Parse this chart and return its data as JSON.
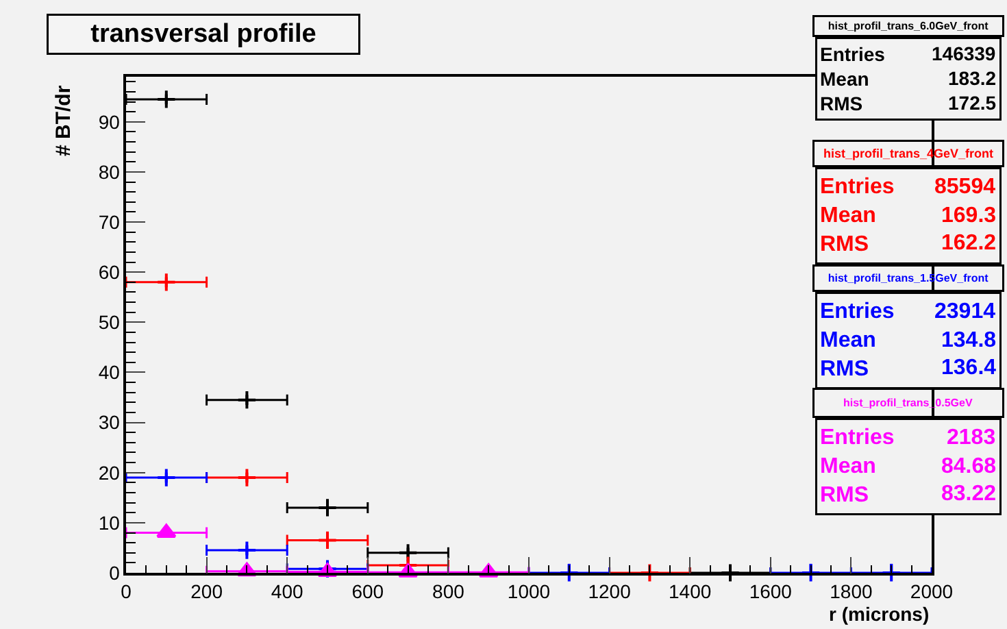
{
  "chart_data": {
    "type": "scatter",
    "title": "transversal profile",
    "xlabel": "r (microns)",
    "ylabel": "# BT/dr",
    "x": [
      100,
      300,
      500,
      700,
      900,
      1100,
      1300,
      1500,
      1700,
      1900
    ],
    "xlim": [
      0,
      2000
    ],
    "xticks": [
      0,
      200,
      400,
      600,
      800,
      1000,
      1200,
      1400,
      1600,
      1800,
      2000
    ],
    "ylim": [
      0,
      99
    ],
    "yticks": [
      0,
      10,
      20,
      30,
      40,
      50,
      60,
      70,
      80,
      90
    ],
    "grid": false,
    "legend": false,
    "series": [
      {
        "name": "hist_profil_trans_6.0GeV_front",
        "color": "#000000",
        "marker": "cross",
        "values": [
          94.5,
          34.5,
          13,
          4,
          null,
          null,
          null,
          0,
          null,
          null
        ],
        "errors": [
          1,
          1,
          1,
          1,
          null,
          null,
          null,
          null,
          null,
          null
        ],
        "xerrors": [
          100,
          100,
          100,
          100,
          null,
          null,
          null,
          100,
          null,
          null
        ]
      },
      {
        "name": "hist_profil_trans_4GeV_front",
        "color": "#ff0000",
        "marker": "cross",
        "values": [
          58,
          19,
          6.5,
          1.5,
          null,
          null,
          0,
          null,
          null,
          null
        ],
        "errors": [
          1,
          1,
          1,
          1,
          null,
          null,
          null,
          null,
          null,
          null
        ],
        "xerrors": [
          100,
          100,
          100,
          100,
          null,
          null,
          100,
          null,
          null,
          null
        ]
      },
      {
        "name": "hist_profil_trans_1.5GeV_front",
        "color": "#0000ff",
        "marker": "cross",
        "values": [
          19,
          4.5,
          0.8,
          null,
          null,
          0,
          null,
          null,
          0,
          0
        ],
        "errors": [
          1,
          1,
          1,
          null,
          null,
          1.8,
          null,
          null,
          1.8,
          1.8
        ],
        "xerrors": [
          100,
          100,
          100,
          null,
          null,
          100,
          null,
          null,
          100,
          100
        ]
      },
      {
        "name": "hist_profil_trans_0.5GeV",
        "color": "#ff00ff",
        "marker": "triangle",
        "values": [
          8,
          0.3,
          0.2,
          0.1,
          0.1,
          null,
          null,
          null,
          null,
          null
        ],
        "errors": [
          null,
          null,
          null,
          null,
          null,
          null,
          null,
          null,
          null,
          null
        ],
        "xerrors": [
          100,
          100,
          100,
          100,
          100,
          null,
          null,
          null,
          null,
          null
        ]
      }
    ],
    "annotations": [
      "Entries",
      "146339",
      "Mean",
      "183.2",
      "RMS",
      "172.5",
      "Entries",
      "85594",
      "Mean",
      "169.3",
      "RMS",
      "162.2",
      "Entries",
      "23914",
      "Mean",
      "134.8",
      "RMS",
      "136.4",
      "Entries",
      "2183",
      "Mean",
      "84.68",
      "RMS",
      "83.22"
    ]
  }
}
